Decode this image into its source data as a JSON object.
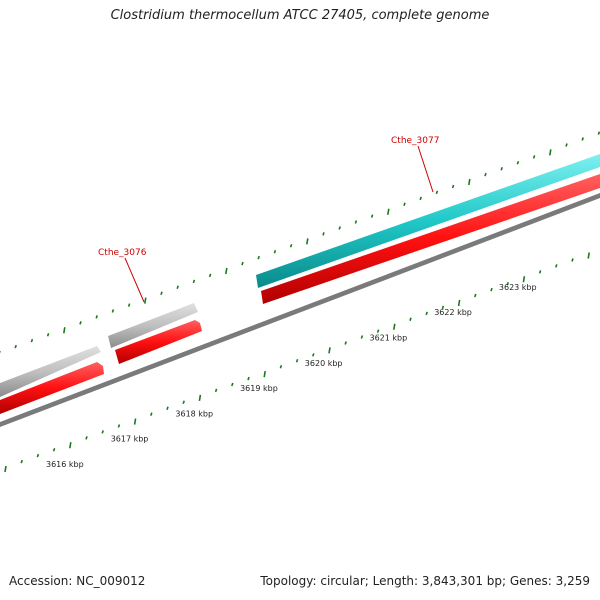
{
  "title": "Clostridium thermocellum ATCC 27405, complete genome",
  "footer": {
    "accession": "Accession: NC_009012",
    "summary": "Topology: circular; Length: 3,843,301 bp; Genes: 3,259"
  },
  "scale": {
    "unit": "kbp",
    "labeled_ticks": [
      3616,
      3617,
      3618,
      3619,
      3620,
      3621,
      3622,
      3623
    ]
  },
  "gene_labels": [
    "Cthe_3076",
    "Cthe_3077"
  ],
  "colors": {
    "cds": "#ff1010",
    "gene_grey": "#c0c0c0",
    "gene_highlight": "#20c8c8",
    "backbone": "#808080",
    "tick": "#1a7a1a",
    "label": "#cc0000"
  }
}
